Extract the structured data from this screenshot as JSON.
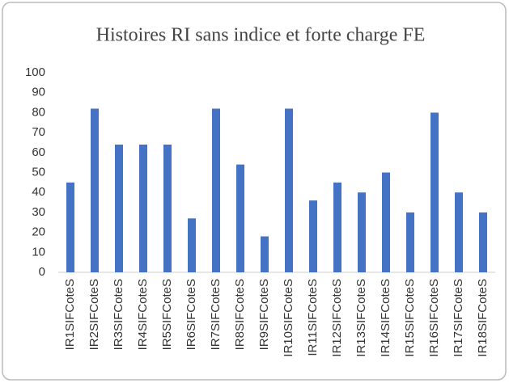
{
  "chart_data": {
    "type": "bar",
    "title": "Histoires RI sans indice et forte charge FE",
    "categories": [
      "IR1SIFCoteS",
      "IR2SIFCoteS",
      "IR3SIFCoteS",
      "IR4SIFCoteS",
      "IR5SIFCoteS",
      "IR6SIFCoteS",
      "IR7SIFCoteS",
      "IR8SIFCoteS",
      "IR9SIFCoteS",
      "IR10SIFCoteS",
      "IR11SIFCoteS",
      "IR12SIFCoteS",
      "IR13SIFCoteS",
      "IR14SIFCoteS",
      "IR15SIFCoteS",
      "IR16SIFCoteS",
      "IR17SIFCoteS",
      "IR18SIFCoteS"
    ],
    "values": [
      45,
      82,
      64,
      64,
      64,
      27,
      82,
      54,
      18,
      82,
      36,
      45,
      40,
      50,
      30,
      80,
      40,
      30
    ],
    "color": "#4472c4",
    "ylim": [
      0,
      100
    ],
    "yticks": [
      0,
      10,
      20,
      30,
      40,
      50,
      60,
      70,
      80,
      90,
      100
    ],
    "grid": false
  }
}
